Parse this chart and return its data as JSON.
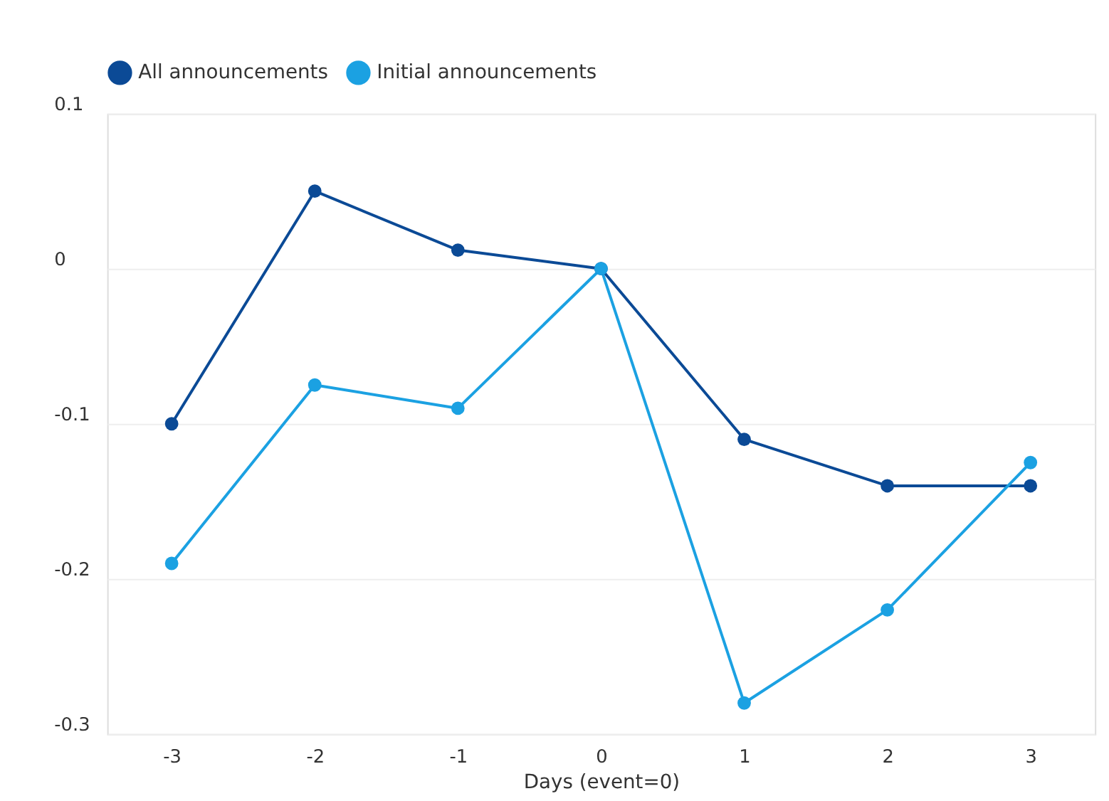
{
  "chart_data": {
    "type": "line",
    "xlabel": "Days (event=0)",
    "categories": [
      "-3",
      "-2",
      "-1",
      "0",
      "1",
      "2",
      "3"
    ],
    "series": [
      {
        "name": "All announcements",
        "color": "#0b4a96",
        "values": [
          -0.1,
          0.05,
          0.012,
          0,
          -0.11,
          -0.14,
          -0.14
        ]
      },
      {
        "name": "Initial announcements",
        "color": "#1ba1e2",
        "values": [
          -0.19,
          -0.075,
          -0.09,
          0,
          -0.28,
          -0.22,
          -0.125
        ]
      }
    ],
    "ylim": [
      -0.3,
      0.1
    ],
    "yticks": [
      -0.3,
      -0.2,
      -0.1,
      0,
      0.1
    ],
    "grid": "y",
    "legend": "top",
    "marker": "circle",
    "line_style": "solid"
  }
}
